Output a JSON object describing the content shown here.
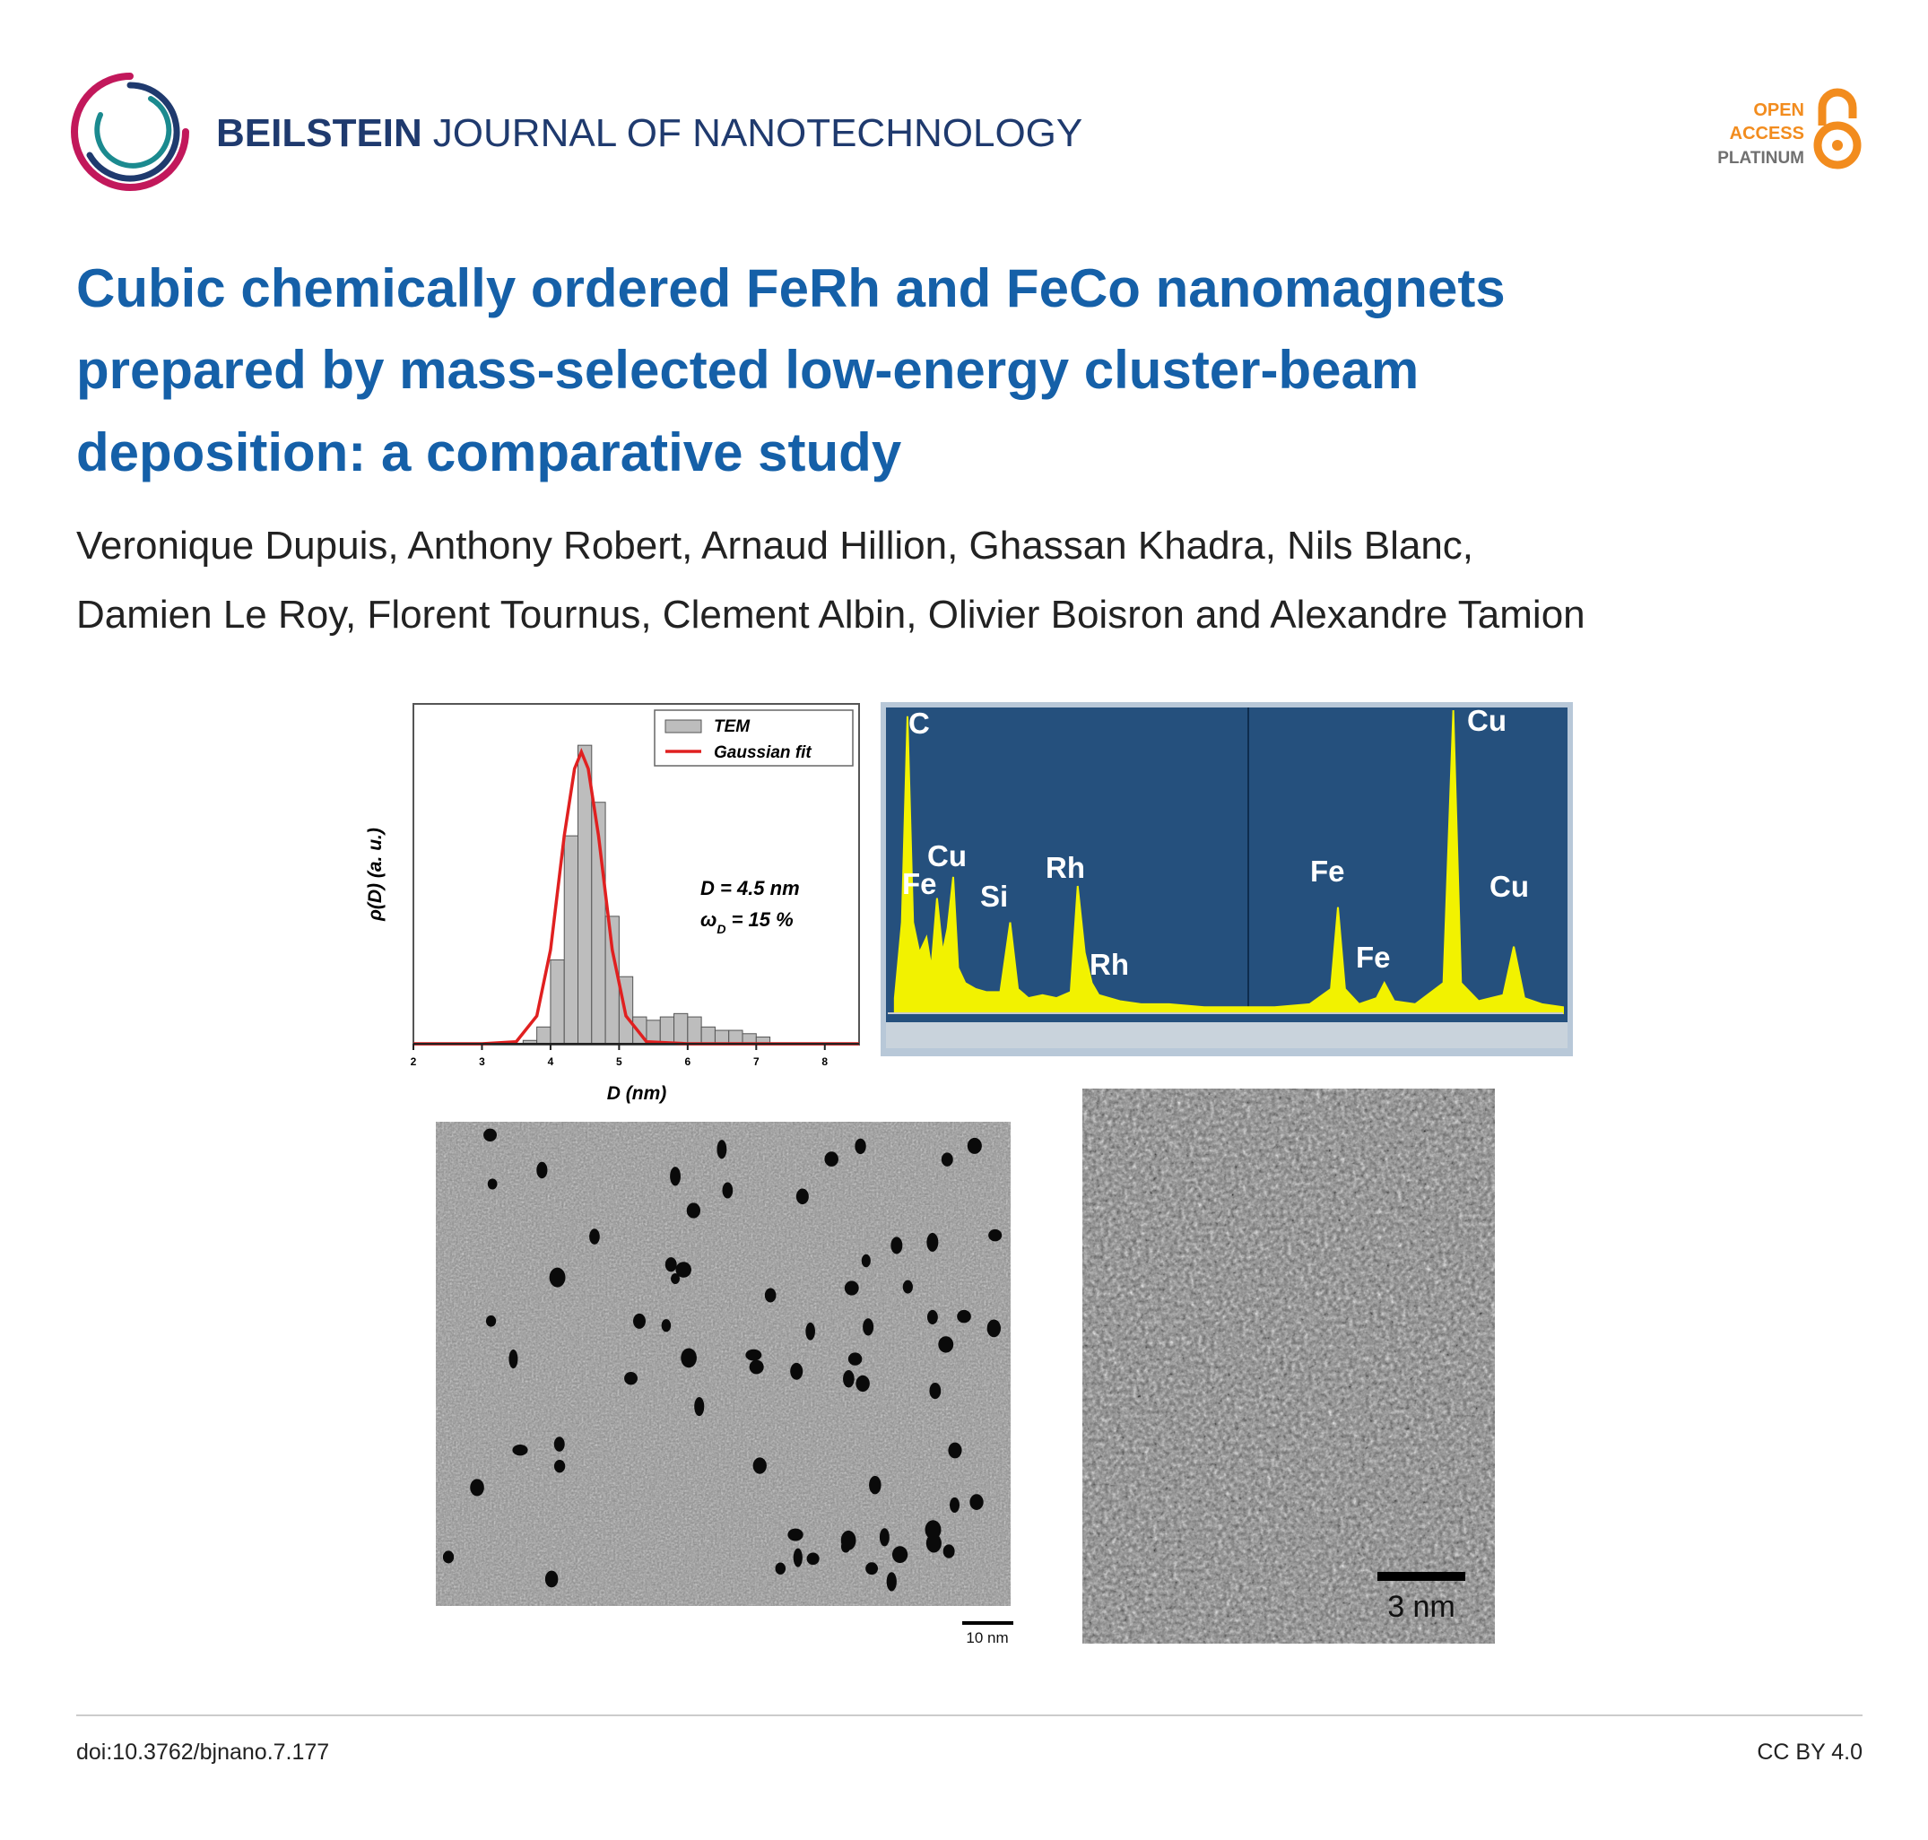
{
  "header": {
    "journal_bold": "BEILSTEIN",
    "journal_rest": "JOURNAL OF NANOTECHNOLOGY",
    "badge": [
      "OPEN",
      "ACCESS",
      "PLATINUM"
    ]
  },
  "article": {
    "title_lines": [
      "Cubic chemically ordered FeRh and FeCo nanomagnets",
      "prepared by mass-selected low-energy cluster-beam",
      "deposition: a comparative study"
    ],
    "author_lines": [
      "Veronique Dupuis, Anthony Robert, Arnaud Hillion, Ghassan Khadra, Nils Blanc,",
      "Damien Le Roy, Florent Tournus, Clement Albin, Olivier Boisron and Alexandre Tamion"
    ]
  },
  "figure": {
    "histogram": {
      "type": "histogram",
      "x_label": "D (nm)",
      "y_label": "ρ(D) (a. u.)",
      "xlim": [
        2,
        8.5
      ],
      "ylim": [
        0,
        1
      ],
      "xticks": [
        2,
        3,
        4,
        5,
        6,
        7,
        8
      ],
      "bins": [
        3.6,
        3.8,
        4.0,
        4.2,
        4.4,
        4.6,
        4.8,
        5.0,
        5.2,
        5.4,
        5.6,
        5.8,
        6.0,
        6.2,
        6.4,
        6.6,
        6.8,
        7.0,
        7.2
      ],
      "series": [
        {
          "name": "TEM",
          "color": "#bdbdbd",
          "values": [
            0.01,
            0.05,
            0.25,
            0.62,
            0.89,
            0.72,
            0.38,
            0.2,
            0.08,
            0.07,
            0.08,
            0.09,
            0.08,
            0.05,
            0.04,
            0.04,
            0.03,
            0.02
          ]
        },
        {
          "name": "Gaussian fit",
          "color": "#e02020",
          "x": [
            2,
            3,
            3.5,
            3.8,
            4.0,
            4.2,
            4.35,
            4.45,
            4.55,
            4.7,
            4.9,
            5.1,
            5.4,
            6,
            8.5
          ],
          "values": [
            0,
            0,
            0.006,
            0.083,
            0.28,
            0.62,
            0.82,
            0.87,
            0.82,
            0.62,
            0.28,
            0.083,
            0.006,
            0,
            0
          ]
        }
      ],
      "annotations": [
        "D = 4.5 nm",
        {
          "symbol": "ω",
          "subscript": "D",
          "text": " = 15 %"
        }
      ]
    },
    "spectrum": {
      "type": "area",
      "color": "#f2f200",
      "xlim": [
        0,
        9.6
      ],
      "ylim": [
        0,
        1
      ],
      "x": [
        0.1,
        0.2,
        0.28,
        0.36,
        0.45,
        0.55,
        0.62,
        0.7,
        0.78,
        0.85,
        0.93,
        1.0,
        1.1,
        1.25,
        1.4,
        1.6,
        1.74,
        1.85,
        2.0,
        2.2,
        2.4,
        2.6,
        2.7,
        2.8,
        2.9,
        3.0,
        3.3,
        3.6,
        4.0,
        4.5,
        5.0,
        5.5,
        6.0,
        6.3,
        6.4,
        6.5,
        6.7,
        6.95,
        7.06,
        7.2,
        7.5,
        7.9,
        8.04,
        8.15,
        8.4,
        8.75,
        8.9,
        9.05,
        9.3,
        9.6
      ],
      "values": [
        0.05,
        0.3,
        0.98,
        0.3,
        0.2,
        0.25,
        0.15,
        0.38,
        0.2,
        0.28,
        0.45,
        0.15,
        0.1,
        0.08,
        0.07,
        0.07,
        0.3,
        0.08,
        0.05,
        0.06,
        0.05,
        0.07,
        0.42,
        0.2,
        0.1,
        0.06,
        0.04,
        0.03,
        0.03,
        0.02,
        0.02,
        0.02,
        0.03,
        0.08,
        0.35,
        0.08,
        0.03,
        0.05,
        0.1,
        0.04,
        0.03,
        0.1,
        1.0,
        0.1,
        0.04,
        0.06,
        0.22,
        0.05,
        0.03,
        0.02
      ],
      "peak_labels": [
        "C",
        "Cu",
        "Fe",
        "Si",
        "Rh",
        "Rh",
        "Fe",
        "Fe",
        "Cu",
        "Cu"
      ]
    },
    "tem_images": [
      {
        "scale_bar": "10 nm"
      },
      {
        "scale_bar": "3 nm"
      }
    ]
  },
  "footer": {
    "doi": "doi:10.3762/bjnano.7.177",
    "license": "CC BY 4.0"
  }
}
